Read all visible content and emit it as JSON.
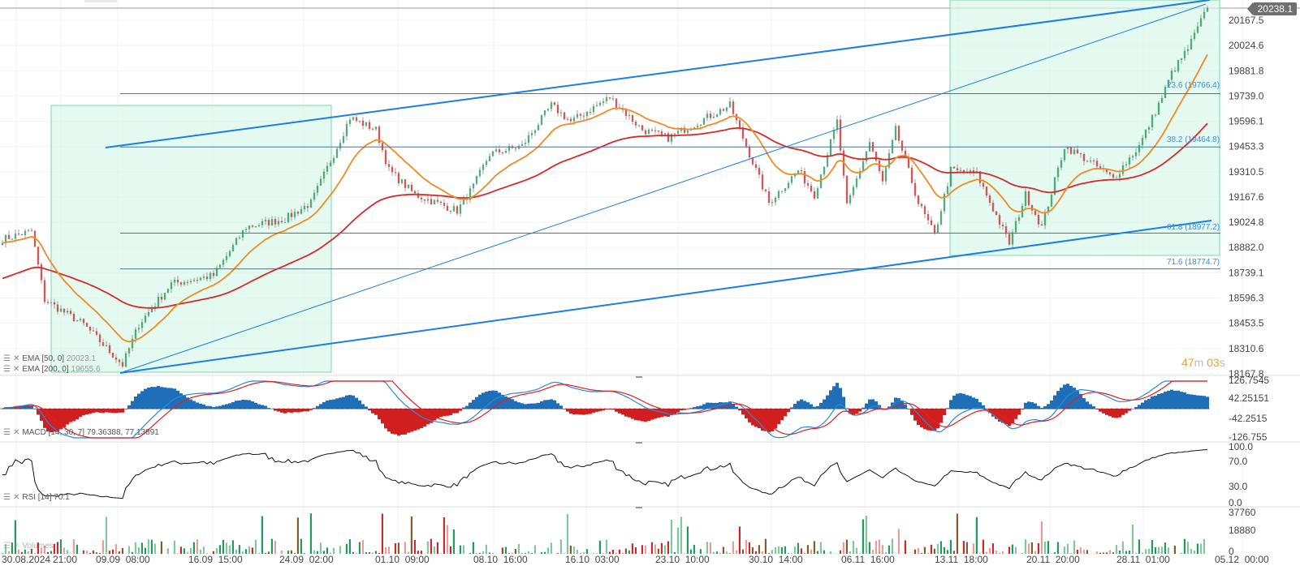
{
  "chart_data": {
    "type": "candlestick",
    "instrument_panels": [
      "price",
      "macd",
      "rsi",
      "volume"
    ],
    "price_axis_ticks": [
      20167.5,
      20024.6,
      19881.8,
      19739.0,
      19596.1,
      19453.3,
      19310.5,
      19167.6,
      19024.8,
      18882.0,
      18739.1,
      18596.3,
      18453.5,
      18310.6,
      18167.8
    ],
    "price_axis_range": [
      18167.8,
      20238.1
    ],
    "last_price": "20238.1",
    "time_axis_labels": [
      "30.08.2024",
      "21:00",
      "09.09  08:00",
      "16.09  15:00",
      "24.09  02:00",
      "01.10  09:00",
      "08.10  16:00",
      "16.10  03:00",
      "23.10  10:00",
      "30.10  14:00",
      "06.11  16:00",
      "13.11  18:00",
      "20.11  20:00",
      "28.11  01:00",
      "05.12  00:00"
    ],
    "candle_count": 372,
    "price_path_keypoints": [
      [
        0,
        18929
      ],
      [
        9,
        18975
      ],
      [
        13,
        18585
      ],
      [
        25,
        18447
      ],
      [
        37,
        18218
      ],
      [
        42,
        18447
      ],
      [
        52,
        18677
      ],
      [
        65,
        18723
      ],
      [
        75,
        18998
      ],
      [
        87,
        19044
      ],
      [
        95,
        19135
      ],
      [
        102,
        19411
      ],
      [
        107,
        19617
      ],
      [
        115,
        19548
      ],
      [
        119,
        19319
      ],
      [
        127,
        19181
      ],
      [
        140,
        19090
      ],
      [
        145,
        19227
      ],
      [
        150,
        19411
      ],
      [
        160,
        19456
      ],
      [
        169,
        19686
      ],
      [
        175,
        19594
      ],
      [
        187,
        19732
      ],
      [
        197,
        19548
      ],
      [
        205,
        19502
      ],
      [
        212,
        19571
      ],
      [
        224,
        19686
      ],
      [
        230,
        19411
      ],
      [
        236,
        19135
      ],
      [
        245,
        19319
      ],
      [
        250,
        19181
      ],
      [
        257,
        19594
      ],
      [
        260,
        19112
      ],
      [
        267,
        19479
      ],
      [
        271,
        19250
      ],
      [
        275,
        19548
      ],
      [
        282,
        19135
      ],
      [
        287,
        18952
      ],
      [
        292,
        19319
      ],
      [
        300,
        19296
      ],
      [
        310,
        18906
      ],
      [
        315,
        19181
      ],
      [
        320,
        18998
      ],
      [
        327,
        19456
      ],
      [
        335,
        19365
      ],
      [
        342,
        19273
      ],
      [
        350,
        19456
      ],
      [
        357,
        19732
      ],
      [
        360,
        19869
      ],
      [
        365,
        20007
      ],
      [
        371,
        20238
      ]
    ],
    "indicators": {
      "ema50": {
        "label": "EMA [50, 0]",
        "value": "20023.1",
        "color": "#f08a24"
      },
      "ema200": {
        "label": "EMA [200, 0]",
        "value": "19655.6",
        "color": "#d42a2a"
      },
      "macd": {
        "label": "MACD [14, 30, 7]",
        "value1": "79.36388,",
        "value2": "77.13891",
        "axis_ticks": [
          "126.7545",
          "42.25151",
          "-42.2515",
          "-126.755"
        ],
        "range": [
          -126.755,
          126.7545
        ]
      },
      "rsi": {
        "label": "RSI [14]",
        "value": "70.1",
        "axis_ticks": [
          "100.0",
          "70.0",
          "30.0",
          "0.0"
        ],
        "range": [
          0,
          100
        ]
      },
      "volume": {
        "label": "Volumes",
        "axis_ticks": [
          "37760",
          "18880",
          "0"
        ],
        "range": [
          0,
          37760
        ]
      }
    },
    "fibonacci_levels": [
      {
        "label": "23.6 (19766.4)",
        "price": 19766.4
      },
      {
        "label": "38.2 (19464.8)",
        "price": 19464.8
      },
      {
        "label": "61.8 (18977.2)",
        "price": 18977.2
      },
      {
        "label": "71.6 (18774.7)",
        "price": 18774.7
      }
    ],
    "countdown": {
      "minutes": "47",
      "m": "m",
      "seconds": "03",
      "s": "s"
    },
    "colors": {
      "up": "#1c9e5c",
      "down": "#d32626",
      "drawing": "#1a7fe0",
      "zone": "#d9f6ea"
    }
  }
}
